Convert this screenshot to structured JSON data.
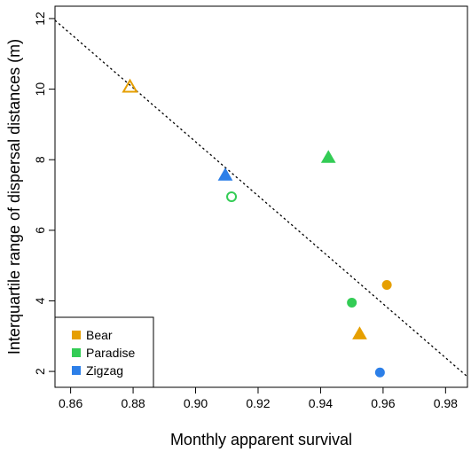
{
  "chart_data": {
    "type": "scatter",
    "title": "",
    "xlabel": "Monthly apparent survival",
    "ylabel": "Interquartile range of dispersal distances (m)",
    "xlim": [
      0.855,
      0.987
    ],
    "ylim": [
      1.55,
      12.35
    ],
    "xticks": [
      0.86,
      0.88,
      0.9,
      0.92,
      0.94,
      0.96,
      0.98
    ],
    "xtick_labels": [
      "0.86",
      "0.88",
      "0.90",
      "0.92",
      "0.94",
      "0.96",
      "0.98"
    ],
    "yticks": [
      2,
      4,
      6,
      8,
      10,
      12
    ],
    "ytick_labels": [
      "2",
      "4",
      "6",
      "8",
      "10",
      "12"
    ],
    "grid": false,
    "legend_position": "bottom-left",
    "legend": [
      {
        "name": "Bear",
        "color": "#E69F00"
      },
      {
        "name": "Paradise",
        "color": "#33CC55"
      },
      {
        "name": "Zigzag",
        "color": "#2C7FE8"
      }
    ],
    "points": [
      {
        "series": "Bear",
        "x": 0.879,
        "y": 10.05,
        "marker": "triangle",
        "filled": false
      },
      {
        "series": "Zigzag",
        "x": 0.9095,
        "y": 7.55,
        "marker": "triangle",
        "filled": true
      },
      {
        "series": "Paradise",
        "x": 0.9115,
        "y": 6.95,
        "marker": "circle",
        "filled": false
      },
      {
        "series": "Paradise",
        "x": 0.9425,
        "y": 8.05,
        "marker": "triangle",
        "filled": true
      },
      {
        "series": "Bear",
        "x": 0.9612,
        "y": 4.45,
        "marker": "circle",
        "filled": true
      },
      {
        "series": "Paradise",
        "x": 0.95,
        "y": 3.95,
        "marker": "circle",
        "filled": true
      },
      {
        "series": "Bear",
        "x": 0.9525,
        "y": 3.05,
        "marker": "triangle",
        "filled": true
      },
      {
        "series": "Zigzag",
        "x": 0.959,
        "y": 1.97,
        "marker": "circle",
        "filled": true
      }
    ],
    "trend_line": {
      "style": "dotted",
      "x": [
        0.855,
        0.987
      ],
      "y": [
        11.95,
        1.85
      ]
    }
  }
}
